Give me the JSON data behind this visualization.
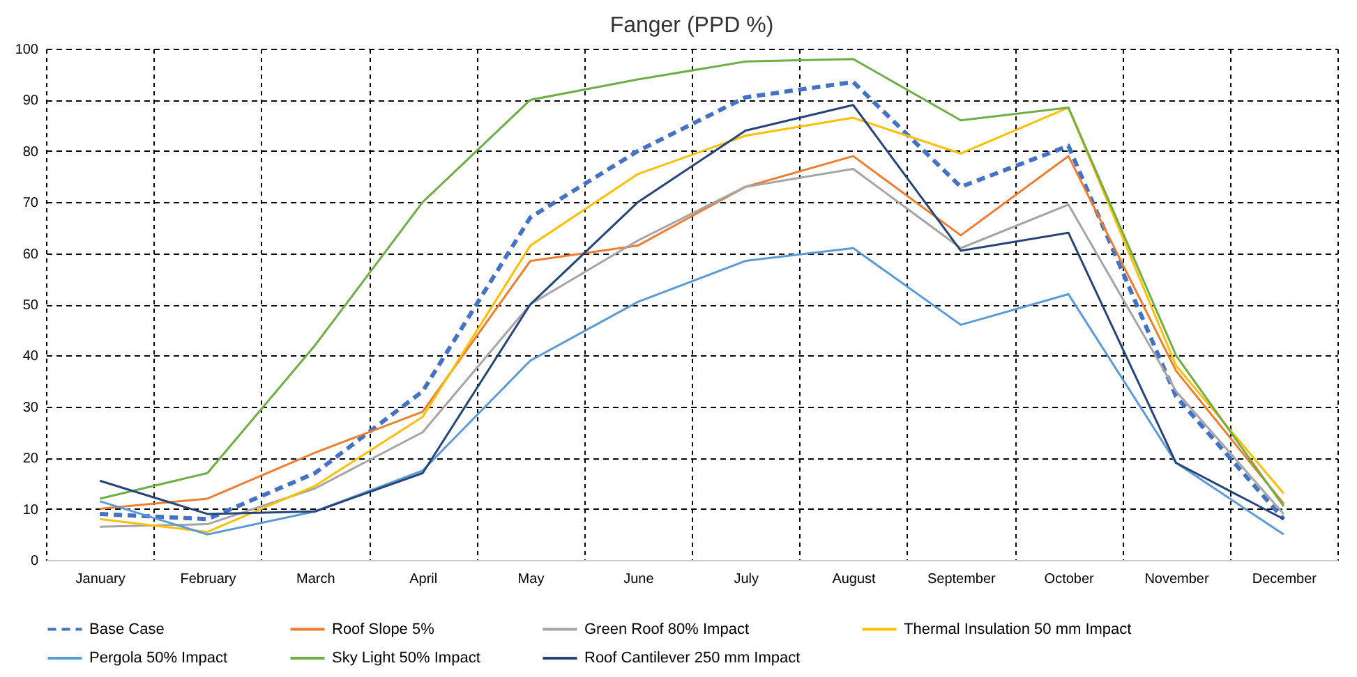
{
  "chart_data": {
    "type": "line",
    "title": "Fanger (PPD %)",
    "categories": [
      "January",
      "February",
      "March",
      "April",
      "May",
      "June",
      "July",
      "August",
      "September",
      "October",
      "November",
      "December"
    ],
    "series": [
      {
        "name": "Base Case",
        "color": "#4472c4",
        "line_style": "dashed",
        "values": [
          9,
          8,
          17,
          33,
          67,
          80,
          90.5,
          93.5,
          73,
          81,
          32,
          8
        ]
      },
      {
        "name": "Roof Slope 5%",
        "color": "#ed7d31",
        "values": [
          10,
          12,
          21,
          29,
          58.5,
          61.5,
          73,
          79,
          63.5,
          79,
          37,
          11
        ]
      },
      {
        "name": "Green Roof 80% Impact",
        "color": "#a5a5a5",
        "values": [
          6.5,
          7,
          14,
          25,
          50,
          62.5,
          73,
          76.5,
          61,
          69.5,
          33,
          9
        ]
      },
      {
        "name": "Thermal Insulation 50 mm Impact",
        "color": "#ffc000",
        "values": [
          8,
          5.5,
          14.5,
          28,
          61.5,
          75.5,
          83,
          86.5,
          79.5,
          88.5,
          38,
          13
        ]
      },
      {
        "name": "Pergola 50% Impact",
        "color": "#5b9bd5",
        "values": [
          11.5,
          5,
          9.5,
          17.5,
          39,
          50.5,
          58.5,
          61,
          46,
          52,
          19,
          5
        ]
      },
      {
        "name": "Sky Light 50% Impact",
        "color": "#70ad47",
        "values": [
          12,
          17,
          42,
          70,
          90,
          94,
          97.5,
          98,
          86,
          88.5,
          40,
          10.5
        ]
      },
      {
        "name": "Roof Cantilever 250 mm Impact",
        "color": "#264478",
        "values": [
          15.5,
          9,
          9.5,
          17,
          50,
          70,
          84,
          89,
          60.5,
          64,
          19,
          8
        ]
      }
    ],
    "ylim": [
      0,
      100
    ],
    "yticks": [
      0,
      10,
      20,
      30,
      40,
      50,
      60,
      70,
      80,
      90,
      100
    ],
    "grid": true,
    "legend": "bottom",
    "line_style": "solid"
  }
}
